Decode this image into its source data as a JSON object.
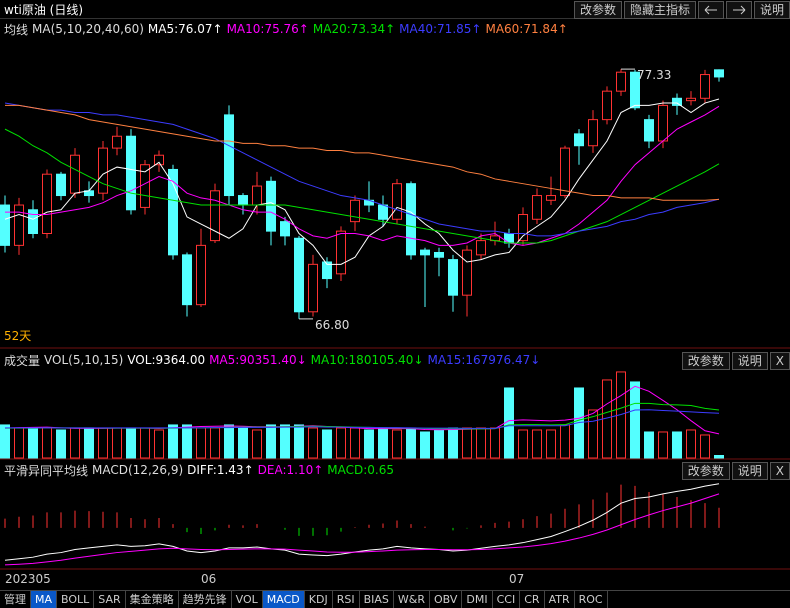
{
  "window": {
    "title": "wti原油 (日线)",
    "buttons": [
      "改参数",
      "隐藏主指标",
      "说明"
    ]
  },
  "chart_data": [
    {
      "type": "candlestick",
      "title": "均线",
      "subtitle": "MA(5,10,20,40,60)",
      "period_label": "52天",
      "buttons": [],
      "categories": [
        "202305",
        null,
        null,
        null,
        null,
        null,
        null,
        null,
        null,
        null,
        null,
        null,
        null,
        null,
        "06",
        null,
        null,
        null,
        null,
        null,
        null,
        null,
        null,
        null,
        null,
        null,
        null,
        null,
        null,
        null,
        null,
        null,
        null,
        null,
        null,
        null,
        "07",
        null,
        null,
        null,
        null,
        null,
        null,
        null,
        null,
        null,
        null,
        null,
        null,
        null,
        null,
        null
      ],
      "open": [
        71.6,
        69.9,
        71.4,
        70.4,
        72.9,
        72.1,
        72.2,
        72.1,
        74.0,
        74.5,
        71.5,
        73.3,
        73.1,
        69.5,
        67.4,
        70.1,
        75.4,
        72.0,
        71.6,
        72.6,
        70.9,
        70.2,
        67.1,
        69.2,
        68.7,
        70.9,
        71.8,
        71.6,
        71.0,
        72.5,
        69.7,
        69.6,
        69.3,
        67.8,
        69.5,
        70.1,
        70.4,
        70.1,
        71.0,
        71.8,
        72.0,
        74.6,
        74.1,
        75.2,
        76.4,
        77.2,
        75.2,
        74.3,
        76.1,
        76.0,
        76.1,
        77.3
      ],
      "high": [
        72.0,
        71.9,
        71.8,
        73.1,
        73.0,
        74.0,
        72.6,
        74.3,
        74.9,
        74.8,
        73.5,
        73.9,
        73.3,
        69.6,
        70.6,
        72.5,
        75.8,
        72.1,
        73.0,
        72.8,
        71.1,
        70.3,
        69.5,
        69.4,
        70.7,
        72.0,
        72.6,
        72.0,
        72.7,
        72.6,
        69.8,
        69.8,
        69.5,
        69.9,
        70.4,
        70.9,
        70.6,
        71.5,
        72.3,
        72.8,
        74.1,
        74.8,
        75.6,
        76.6,
        77.33,
        77.3,
        75.4,
        76.0,
        76.3,
        76.4,
        77.3,
        77.32
      ],
      "low": [
        69.6,
        69.5,
        70.2,
        70.2,
        71.8,
        71.9,
        71.7,
        71.8,
        73.7,
        71.2,
        71.2,
        73.0,
        69.3,
        66.9,
        67.3,
        70.0,
        71.6,
        71.2,
        71.2,
        69.9,
        69.9,
        66.8,
        66.9,
        68.1,
        68.4,
        70.5,
        71.3,
        70.7,
        70.8,
        69.3,
        67.3,
        68.6,
        67.1,
        66.9,
        69.3,
        69.9,
        69.8,
        69.9,
        70.8,
        71.6,
        71.9,
        73.3,
        73.8,
        75.0,
        76.2,
        75.6,
        74.0,
        74.0,
        75.4,
        75.8,
        75.9,
        76.8
      ],
      "close": [
        69.9,
        71.6,
        70.4,
        72.9,
        72.0,
        73.7,
        72.0,
        74.0,
        74.5,
        71.4,
        73.3,
        73.7,
        69.5,
        67.4,
        69.9,
        72.2,
        72.0,
        71.6,
        72.4,
        70.5,
        70.3,
        67.1,
        69.1,
        68.5,
        70.5,
        71.8,
        71.6,
        71.0,
        72.5,
        69.5,
        69.5,
        69.4,
        67.8,
        69.7,
        70.1,
        70.3,
        70.0,
        71.2,
        72.0,
        72.0,
        74.0,
        74.1,
        75.2,
        76.4,
        77.2,
        75.7,
        74.3,
        75.8,
        75.8,
        76.1,
        77.1,
        77.0
      ],
      "up_color": "#ff3232",
      "down_color": "#54ffff",
      "ylim": [
        65.7,
        79.4
      ],
      "annotations": [
        {
          "value": 77.33,
          "label": "77.33"
        },
        {
          "value": 66.8,
          "label": "66.80"
        }
      ],
      "series": [
        {
          "label": "MA5:76.07↑",
          "color": "#ffffff",
          "values": [
            71.0,
            71.2,
            71.0,
            71.3,
            71.4,
            72.1,
            72.2,
            72.9,
            73.2,
            73.1,
            73.0,
            73.4,
            72.5,
            71.1,
            70.8,
            70.5,
            70.2,
            70.6,
            71.6,
            71.7,
            71.4,
            70.4,
            69.9,
            69.1,
            69.1,
            69.4,
            70.3,
            70.7,
            71.5,
            71.3,
            70.8,
            70.4,
            69.7,
            69.2,
            69.3,
            69.5,
            69.6,
            70.3,
            70.7,
            71.1,
            71.8,
            72.7,
            73.5,
            74.3,
            75.5,
            75.8,
            75.8,
            75.9,
            75.9,
            75.5,
            75.9,
            76.07
          ]
        },
        {
          "label": "MA10:75.76↑",
          "color": "#ff00ff",
          "values": [
            71.3,
            71.3,
            71.2,
            71.2,
            71.3,
            71.4,
            71.5,
            71.7,
            72.0,
            72.2,
            72.5,
            72.8,
            72.6,
            72.1,
            71.9,
            71.8,
            71.6,
            71.4,
            71.3,
            71.3,
            71.0,
            70.6,
            70.3,
            70.2,
            70.4,
            70.4,
            70.3,
            70.1,
            70.3,
            70.2,
            70.1,
            69.9,
            69.9,
            70.0,
            70.3,
            70.4,
            70.0,
            69.9,
            70.0,
            70.2,
            70.4,
            70.8,
            71.3,
            71.8,
            72.6,
            73.3,
            73.8,
            74.3,
            74.8,
            75.1,
            75.4,
            75.76
          ]
        },
        {
          "label": "MA20:73.34↑",
          "color": "#00e000",
          "values": [
            74.8,
            74.5,
            74.1,
            73.8,
            73.4,
            73.1,
            72.8,
            72.5,
            72.3,
            72.1,
            72.0,
            71.9,
            71.8,
            71.7,
            71.6,
            71.6,
            71.6,
            71.6,
            71.6,
            71.6,
            71.6,
            71.5,
            71.4,
            71.3,
            71.2,
            71.1,
            71.0,
            70.9,
            70.8,
            70.7,
            70.6,
            70.5,
            70.4,
            70.3,
            70.2,
            70.1,
            70.0,
            70.0,
            70.0,
            70.1,
            70.3,
            70.5,
            70.7,
            70.9,
            71.2,
            71.5,
            71.8,
            72.1,
            72.4,
            72.7,
            73.0,
            73.34
          ]
        },
        {
          "label": "MA40:71.85↑",
          "color": "#3c3cff",
          "values": [
            75.9,
            75.8,
            75.7,
            75.6,
            75.6,
            75.5,
            75.5,
            75.4,
            75.4,
            75.3,
            75.2,
            75.1,
            75.0,
            74.8,
            74.6,
            74.4,
            74.1,
            73.8,
            73.5,
            73.2,
            72.9,
            72.6,
            72.4,
            72.2,
            72.0,
            71.9,
            71.8,
            71.6,
            71.4,
            71.2,
            71.0,
            70.8,
            70.7,
            70.6,
            70.5,
            70.5,
            70.4,
            70.4,
            70.3,
            70.3,
            70.4,
            70.5,
            70.6,
            70.7,
            70.9,
            71.0,
            71.2,
            71.3,
            71.5,
            71.6,
            71.7,
            71.85
          ]
        },
        {
          "label": "MA60:71.84↑",
          "color": "#ff8040",
          "values": [
            75.8,
            75.8,
            75.7,
            75.6,
            75.5,
            75.4,
            75.2,
            75.1,
            75.0,
            74.9,
            74.8,
            74.7,
            74.6,
            74.5,
            74.4,
            74.3,
            74.3,
            74.2,
            74.2,
            74.1,
            74.1,
            74.0,
            74.0,
            73.9,
            73.9,
            73.8,
            73.8,
            73.7,
            73.6,
            73.5,
            73.4,
            73.3,
            73.2,
            73.0,
            72.9,
            72.7,
            72.6,
            72.5,
            72.4,
            72.3,
            72.2,
            72.1,
            72.0,
            72.0,
            71.9,
            71.9,
            71.9,
            71.8,
            71.8,
            71.8,
            71.8,
            71.84
          ]
        }
      ]
    },
    {
      "type": "bar",
      "title": "成交量",
      "subtitle": "VOL(5,10,15)",
      "value_label": "VOL:9364.00",
      "buttons": [
        "改参数",
        "说明",
        "X"
      ],
      "values": [
        124000,
        112600,
        112600,
        112600,
        105100,
        112600,
        112600,
        112600,
        112600,
        112600,
        112600,
        105100,
        124000,
        124000,
        112600,
        112600,
        124000,
        112600,
        105100,
        124000,
        124000,
        124000,
        112600,
        105100,
        112600,
        112600,
        105100,
        112600,
        105100,
        112600,
        97600,
        105100,
        112600,
        112600,
        112600,
        112600,
        262600,
        105100,
        105100,
        105100,
        124000,
        262600,
        180100,
        292700,
        322700,
        285200,
        97600,
        97600,
        97600,
        105100,
        86300,
        9364
      ],
      "ylim": [
        0,
        330000
      ],
      "series": [
        {
          "label": "MA5:90351.40↓",
          "color": "#ff00ff",
          "values": [
            112000,
            114000,
            115000,
            116000,
            113000,
            111000,
            111000,
            111000,
            112000,
            112000,
            112000,
            111000,
            113000,
            116000,
            118000,
            119000,
            120000,
            119000,
            117000,
            117000,
            117000,
            119000,
            121000,
            118000,
            116000,
            113000,
            110000,
            110000,
            110000,
            110000,
            107000,
            106000,
            107000,
            108000,
            109000,
            110000,
            140000,
            143000,
            141000,
            139000,
            142000,
            149000,
            167000,
            203000,
            234000,
            269000,
            250000,
            216000,
            181000,
            140000,
            102000,
            90351.4
          ]
        },
        {
          "label": "MA10:180105.40↓",
          "color": "#00e000",
          "values": [
            112000,
            112000,
            112000,
            113000,
            113000,
            113000,
            113000,
            112000,
            112000,
            112000,
            112000,
            112000,
            112000,
            113000,
            113000,
            114000,
            115000,
            116000,
            116000,
            116000,
            117000,
            118000,
            119000,
            118000,
            117000,
            116000,
            115000,
            114000,
            113000,
            112000,
            111000,
            110000,
            110000,
            109000,
            109000,
            110000,
            124000,
            125000,
            125000,
            124000,
            125000,
            142000,
            155000,
            171000,
            187000,
            205000,
            205000,
            200000,
            199000,
            197000,
            186000,
            180105.4
          ]
        },
        {
          "label": "MA15:167976.47↓",
          "color": "#3c3cff",
          "values": [
            113000,
            113000,
            113000,
            113000,
            113000,
            113000,
            113000,
            113000,
            113000,
            113000,
            113000,
            113000,
            113000,
            113000,
            113000,
            114000,
            114000,
            115000,
            115000,
            115000,
            116000,
            116000,
            117000,
            116000,
            116000,
            115000,
            115000,
            114000,
            114000,
            113000,
            112000,
            112000,
            112000,
            111000,
            111000,
            111000,
            121000,
            121000,
            121000,
            121000,
            121000,
            133000,
            138000,
            150000,
            163000,
            180000,
            181000,
            178000,
            176000,
            173000,
            170000,
            167976.47
          ]
        }
      ]
    },
    {
      "type": "macd",
      "title": "平滑异同平均线",
      "subtitle": "MACD(12,26,9)",
      "buttons": [
        "改参数",
        "说明",
        "X"
      ],
      "hist_label": "MACD:0.65",
      "label_color": "#00e000",
      "up_color": "#ff3232",
      "down_color": "#00e000",
      "values": [
        0.3,
        0.36,
        0.4,
        0.5,
        0.5,
        0.56,
        0.54,
        0.52,
        0.5,
        0.32,
        0.28,
        0.32,
        0.12,
        -0.14,
        -0.2,
        -0.08,
        0.1,
        0.08,
        0.12,
        0,
        -0.06,
        -0.26,
        -0.26,
        -0.24,
        -0.12,
        0.02,
        0.1,
        0.14,
        0.24,
        0.12,
        0.04,
        0,
        -0.08,
        -0.02,
        0.08,
        0.16,
        0.2,
        0.28,
        0.38,
        0.46,
        0.62,
        0.76,
        0.92,
        1.14,
        1.4,
        1.36,
        1.16,
        1.08,
        1.0,
        0.9,
        0.8,
        0.65
      ],
      "ylim": [
        -1.3,
        1.55
      ],
      "series": [
        {
          "label": "DIFF:1.43↑",
          "color": "#ffffff",
          "values": [
            -1.05,
            -1.0,
            -0.95,
            -0.85,
            -0.8,
            -0.7,
            -0.65,
            -0.6,
            -0.55,
            -0.6,
            -0.58,
            -0.52,
            -0.6,
            -0.75,
            -0.8,
            -0.75,
            -0.65,
            -0.65,
            -0.62,
            -0.68,
            -0.72,
            -0.85,
            -0.88,
            -0.9,
            -0.85,
            -0.78,
            -0.72,
            -0.68,
            -0.6,
            -0.65,
            -0.68,
            -0.7,
            -0.75,
            -0.72,
            -0.66,
            -0.6,
            -0.55,
            -0.48,
            -0.38,
            -0.28,
            -0.12,
            0.05,
            0.25,
            0.5,
            0.8,
            0.95,
            1.0,
            1.1,
            1.18,
            1.25,
            1.35,
            1.43
          ]
        },
        {
          "label": "DEA:1.10↑",
          "color": "#ff00ff",
          "values": [
            -1.2,
            -1.18,
            -1.15,
            -1.1,
            -1.05,
            -0.98,
            -0.92,
            -0.86,
            -0.8,
            -0.76,
            -0.72,
            -0.68,
            -0.66,
            -0.68,
            -0.7,
            -0.71,
            -0.7,
            -0.69,
            -0.68,
            -0.68,
            -0.69,
            -0.72,
            -0.75,
            -0.78,
            -0.79,
            -0.79,
            -0.77,
            -0.75,
            -0.72,
            -0.71,
            -0.7,
            -0.7,
            -0.71,
            -0.71,
            -0.7,
            -0.68,
            -0.65,
            -0.62,
            -0.57,
            -0.51,
            -0.43,
            -0.33,
            -0.21,
            -0.07,
            0.1,
            0.27,
            0.42,
            0.56,
            0.68,
            0.8,
            0.95,
            1.1
          ]
        }
      ]
    }
  ],
  "tabs": [
    {
      "label": "管理"
    },
    {
      "label": "MA",
      "selected": true
    },
    {
      "label": "BOLL"
    },
    {
      "label": "SAR"
    },
    {
      "label": "集金策略"
    },
    {
      "label": "趋势先锋"
    },
    {
      "label": "VOL"
    },
    {
      "label": "MACD",
      "selected": true
    },
    {
      "label": "KDJ"
    },
    {
      "label": "RSI"
    },
    {
      "label": "BIAS"
    },
    {
      "label": "W&R"
    },
    {
      "label": "OBV"
    },
    {
      "label": "DMI"
    },
    {
      "label": "CCI"
    },
    {
      "label": "CR"
    },
    {
      "label": "ATR"
    },
    {
      "label": "ROC"
    }
  ]
}
